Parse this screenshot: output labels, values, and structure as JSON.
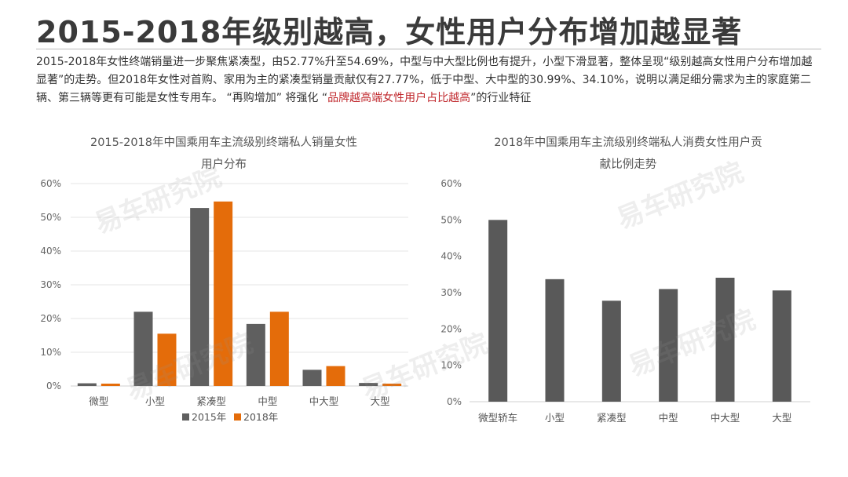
{
  "title": "2015-2018年级别越高，女性用户分布增加越显著",
  "description": {
    "part1": "2015-2018年女性终端销量进一步聚焦紧凑型，由52.77%升至54.69%，中型与中大型比例也有提升，小型下滑显著，整体呈现“级别越高女性用户分布增加越显著”的走势。但2018年女性对首购、家用为主的紧凑型销量贡献仅有27.77%，低于中型、大中型的30.99%、34.10%，说明以满足细分需求为主的家庭第二辆、第三辆等更有可能是女性专用车。 “再购增加” 将强化 “",
    "highlight": "品牌越高端女性用户占比越高",
    "part2": "”的行业特征"
  },
  "watermark": "易车研究院",
  "colors": {
    "series_2015": "#5f5f5f",
    "series_2018": "#e46c0a",
    "bar_right": "#595959"
  },
  "chart_data": [
    {
      "type": "bar",
      "title_line1": "2015-2018年中国乘用车主流级别终端私人销量女性",
      "title_line2": "用户分布",
      "categories": [
        "微型",
        "小型",
        "紧凑型",
        "中型",
        "中大型",
        "大型"
      ],
      "series": [
        {
          "name": "2015年",
          "values": [
            0.8,
            22,
            52.77,
            18.4,
            4.8,
            0.9
          ]
        },
        {
          "name": "2018年",
          "values": [
            0.7,
            15.5,
            54.69,
            22,
            5.9,
            0.7
          ]
        }
      ],
      "yticks": [
        "0%",
        "10%",
        "20%",
        "30%",
        "40%",
        "50%",
        "60%"
      ],
      "ylim": [
        0,
        60
      ],
      "legend": "bottom"
    },
    {
      "type": "bar",
      "title_line1": "2018年中国乘用车主流级别终端私人消费女性用户贡",
      "title_line2": "献比例走势",
      "categories": [
        "微型轿车",
        "小型",
        "紧凑型",
        "中型",
        "中大型",
        "大型"
      ],
      "values": [
        50,
        33.7,
        27.77,
        30.99,
        34.1,
        30.6
      ],
      "yticks": [
        "0%",
        "10%",
        "20%",
        "30%",
        "40%",
        "50%",
        "60%"
      ],
      "ylim": [
        0,
        60
      ]
    }
  ]
}
